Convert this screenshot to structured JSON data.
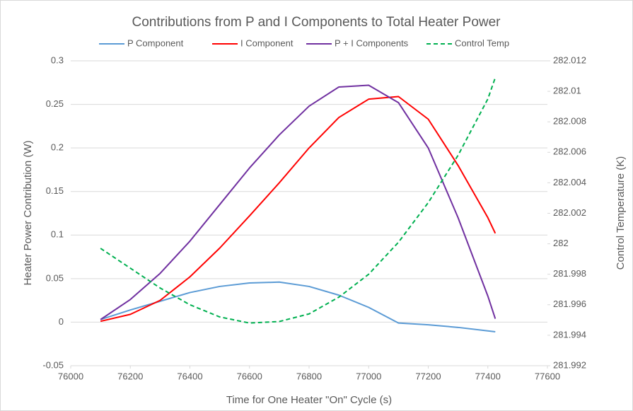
{
  "chart_data": {
    "type": "line",
    "title": "Contributions from P and I Components to Total Heater Power",
    "x_label": "Time for One Heater \"On\" Cycle (s)",
    "y_label": "Heater Power Contribution (W)",
    "y2_label": "Control Temperature (K)",
    "x": [
      76100,
      76200,
      76300,
      76400,
      76500,
      76600,
      76700,
      76800,
      76900,
      77000,
      77100,
      77200,
      77300,
      77400,
      77425
    ],
    "series": [
      {
        "name": "P Component",
        "color": "#5b9bd5",
        "values": [
          0.003,
          0.014,
          0.024,
          0.034,
          0.041,
          0.045,
          0.046,
          0.041,
          0.031,
          0.017,
          -0.001,
          -0.003,
          -0.006,
          -0.01,
          -0.011
        ]
      },
      {
        "name": "I Component",
        "color": "#ff0000",
        "values": [
          0.001,
          0.009,
          0.025,
          0.052,
          0.085,
          0.122,
          0.16,
          0.2,
          0.235,
          0.256,
          0.259,
          0.233,
          0.18,
          0.12,
          0.102
        ]
      },
      {
        "name": "P + I Components",
        "color": "#7030a0",
        "values": [
          0.003,
          0.026,
          0.056,
          0.093,
          0.135,
          0.177,
          0.215,
          0.248,
          0.27,
          0.272,
          0.252,
          0.2,
          0.12,
          0.03,
          0.004
        ]
      },
      {
        "name": "Control Temp",
        "color": "#00b050",
        "line_style": "dashed",
        "axis": "y2",
        "values": [
          281.9997,
          281.9984,
          281.9971,
          281.996,
          281.9952,
          281.9948,
          281.9949,
          281.9954,
          281.9965,
          281.998,
          282.0001,
          282.0027,
          282.0058,
          282.0095,
          282.0109
        ]
      }
    ],
    "xlim": [
      76000,
      77600
    ],
    "xticks": [
      76000,
      76200,
      76400,
      76600,
      76800,
      77000,
      77200,
      77400,
      77600
    ],
    "ylim": [
      -0.05,
      0.3
    ],
    "yticks": [
      -0.05,
      0,
      0.05,
      0.1,
      0.15,
      0.2,
      0.25,
      0.3
    ],
    "y2lim": [
      281.992,
      282.012
    ],
    "y2ticks": [
      281.992,
      281.994,
      281.996,
      281.998,
      282,
      282.002,
      282.004,
      282.006,
      282.008,
      282.01,
      282.012
    ],
    "grid": true,
    "legend": "top"
  }
}
